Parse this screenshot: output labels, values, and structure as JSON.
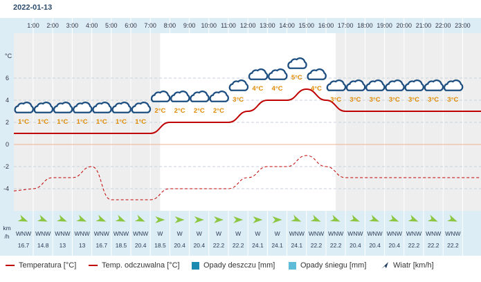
{
  "date": "2022-01-13",
  "chart_data": {
    "type": "line",
    "x": [
      "1:00",
      "2:00",
      "3:00",
      "4:00",
      "5:00",
      "6:00",
      "7:00",
      "8:00",
      "9:00",
      "10:00",
      "11:00",
      "12:00",
      "13:00",
      "14:00",
      "15:00",
      "16:00",
      "17:00",
      "18:00",
      "19:00",
      "20:00",
      "21:00",
      "22:00",
      "23:00"
    ],
    "y_unit": "°C",
    "yticks": [
      6,
      4,
      2,
      0,
      -2,
      -4
    ],
    "ylim": [
      -6,
      8
    ],
    "series": [
      {
        "name": "Temperatura [°C]",
        "color": "#c00000",
        "style": "solid",
        "values": [
          1,
          1,
          1,
          1,
          1,
          1,
          1,
          2,
          2,
          2,
          2,
          3,
          4,
          4,
          5,
          4,
          3,
          3,
          3,
          3,
          3,
          3,
          3
        ]
      },
      {
        "name": "Temp. odczuwalna [°C]",
        "color": "#c00000",
        "style": "dashed",
        "values": [
          -4,
          -3,
          -3,
          -2,
          -5,
          -5,
          -5,
          -4,
          -4,
          -4,
          -4,
          -3,
          -2,
          -2,
          -1,
          -2,
          -3,
          -3,
          -3,
          -3,
          -3,
          -3,
          -3
        ]
      }
    ],
    "temp_labels": [
      "1°C",
      "1°C",
      "1°C",
      "1°C",
      "1°C",
      "1°C",
      "1°C",
      "2°C",
      "2°C",
      "2°C",
      "2°C",
      "3°C",
      "4°C",
      "4°C",
      "5°C",
      "4°C",
      "3°C",
      "3°C",
      "3°C",
      "3°C",
      "3°C",
      "3°C",
      "3°C"
    ],
    "weather_icon": "cloud-icon",
    "wind_unit": "km\n/h",
    "wind_dir": [
      "WNW",
      "WNW",
      "WNW",
      "WNW",
      "WNW",
      "WNW",
      "WNW",
      "W",
      "W",
      "W",
      "W",
      "W",
      "W",
      "W",
      "WNW",
      "WNW",
      "WNW",
      "WNW",
      "WNW",
      "WNW",
      "WNW",
      "WNW",
      "WNW"
    ],
    "wind_speed": [
      "16.7",
      "14.8",
      "13",
      "13",
      "16.7",
      "18.5",
      "20.4",
      "18.5",
      "20.4",
      "20.4",
      "22.2",
      "22.2",
      "24.1",
      "24.1",
      "24.1",
      "22.2",
      "22.2",
      "20.4",
      "20.4",
      "20.4",
      "22.2",
      "22.2",
      "22.2"
    ],
    "night_shading": "#eeeeee",
    "grid": true
  },
  "legend": {
    "temperature": "Temperatura [°C]",
    "feels_like": "Temp. odczuwalna [°C]",
    "rain": "Opady deszczu [mm]",
    "snow": "Opady śniegu [mm]",
    "wind": "Wiatr [km/h]"
  },
  "colors": {
    "line": "#c00000",
    "rain": "#1a8ab0",
    "snow": "#5fbcd8",
    "header_bg": "#dcedf5",
    "cloud_outline": "#1d4e80",
    "temp_label": "#e08a00",
    "wind_arrow": "#8cc640",
    "zero_line": "#f0b090"
  }
}
